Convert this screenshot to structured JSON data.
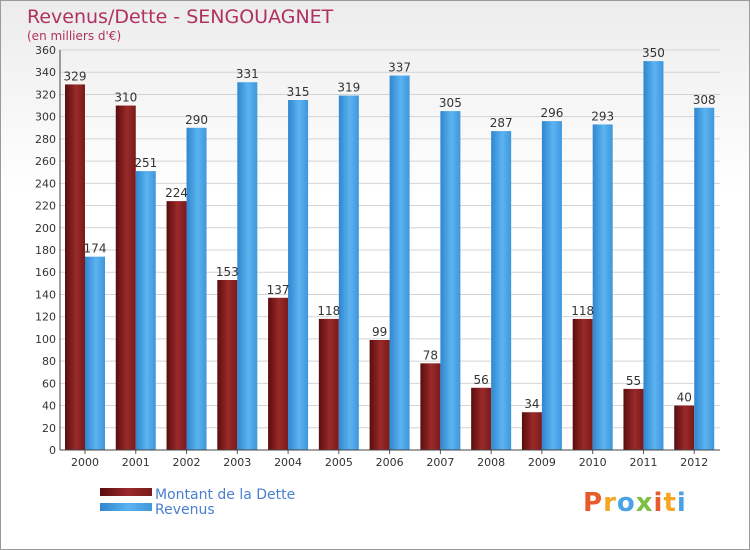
{
  "chart_data": {
    "type": "bar",
    "title": "Revenus/Dette - SENGOUAGNET",
    "subtitle": "(en milliers d'€)",
    "categories": [
      "2000",
      "2001",
      "2002",
      "2003",
      "2004",
      "2005",
      "2006",
      "2007",
      "2008",
      "2009",
      "2010",
      "2011",
      "2012"
    ],
    "series": [
      {
        "name": "Montant de la Dette",
        "color": "#8b1a1a",
        "values": [
          329,
          310,
          224,
          153,
          137,
          118,
          99,
          78,
          56,
          34,
          118,
          55,
          40
        ]
      },
      {
        "name": "Revenus",
        "color": "#4aa3e6",
        "values": [
          174,
          251,
          290,
          331,
          315,
          319,
          337,
          305,
          287,
          296,
          293,
          350,
          308
        ]
      }
    ],
    "ylim": [
      0,
      360
    ],
    "ytick_step": 20,
    "grid": true,
    "legend_position": "bottom-left"
  },
  "brand": {
    "text": "Proxiti",
    "letter_colors": [
      "#e8592b",
      "#f5a623",
      "#4aa3e6",
      "#7cc142",
      "#e8592b",
      "#f5a623",
      "#4aa3e6"
    ]
  }
}
